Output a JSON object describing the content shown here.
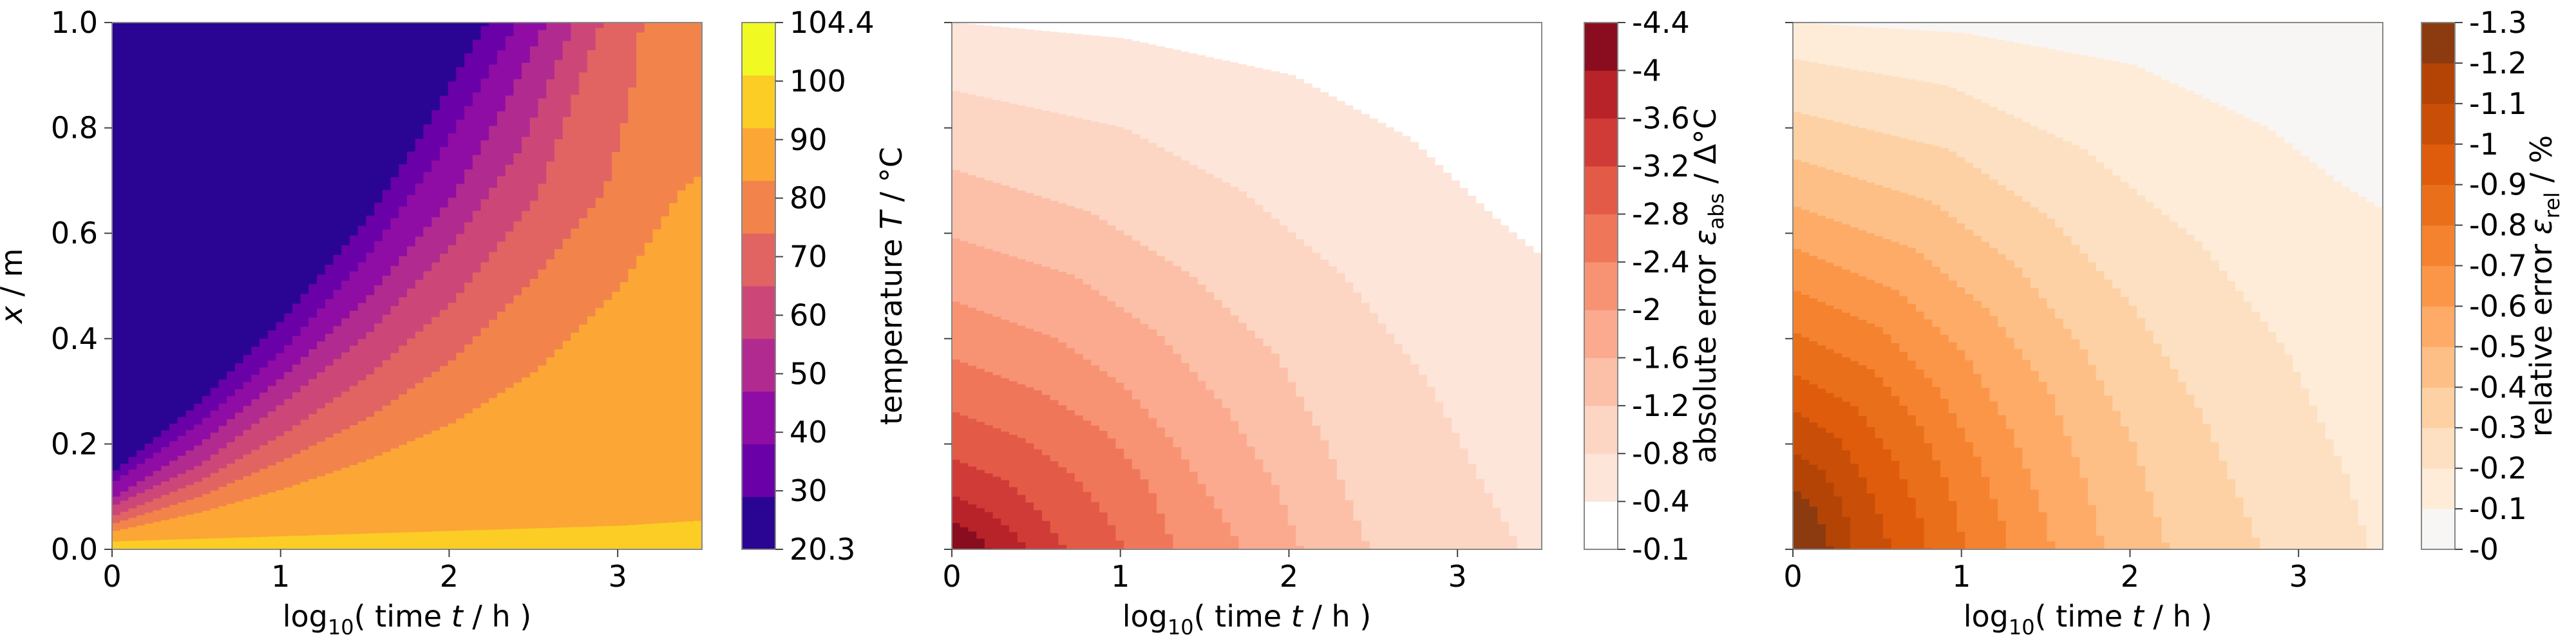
{
  "chart_data": [
    {
      "type": "heatmap",
      "panel": "temperature",
      "xlabel_parts": [
        "log",
        "10",
        "( time ",
        "t",
        " / h )"
      ],
      "ylabel_parts": [
        "x",
        " / m"
      ],
      "xlim": [
        0,
        3.5
      ],
      "ylim": [
        0,
        1
      ],
      "xticks": [
        "0",
        "1",
        "2",
        "3"
      ],
      "yticks": [
        "0.0",
        "0.2",
        "0.4",
        "0.6",
        "0.8",
        "1.0"
      ],
      "x_tick_values": [
        0,
        1,
        2,
        3
      ],
      "y_tick_values": [
        0,
        0.2,
        0.4,
        0.6,
        0.8,
        1.0
      ],
      "colormap": "plasma",
      "colorbar": {
        "label_parts": [
          "temperature ",
          "T",
          " / °C"
        ],
        "ticks": [
          "20.3",
          "30",
          "40",
          "50",
          "60",
          "70",
          "80",
          "90",
          "100",
          "104.4"
        ],
        "levels": [
          20.3,
          30,
          40,
          50,
          60,
          70,
          80,
          90,
          100,
          104.4
        ],
        "colors": [
          "#2a0593",
          "#6a00a8",
          "#8f0da4",
          "#b12a90",
          "#cc4778",
          "#e16462",
          "#f2844b",
          "#fca636",
          "#fccd25",
          "#f0f921"
        ]
      },
      "level_boundaries": [
        {
          "between": "20.3-30",
          "points": [
            [
              0,
              0.15
            ],
            [
              0.5,
              0.28
            ],
            [
              1.0,
              0.44
            ],
            [
              1.5,
              0.63
            ],
            [
              1.8,
              0.78
            ],
            [
              2.05,
              0.92
            ],
            [
              2.2,
              1.0
            ]
          ]
        },
        {
          "between": "30-40",
          "points": [
            [
              0,
              0.13
            ],
            [
              0.5,
              0.24
            ],
            [
              1.0,
              0.38
            ],
            [
              1.5,
              0.56
            ],
            [
              1.9,
              0.74
            ],
            [
              2.2,
              0.9
            ],
            [
              2.38,
              1.0
            ]
          ]
        },
        {
          "between": "40-50",
          "points": [
            [
              0,
              0.1
            ],
            [
              0.5,
              0.2
            ],
            [
              1.0,
              0.33
            ],
            [
              1.5,
              0.48
            ],
            [
              2.0,
              0.67
            ],
            [
              2.3,
              0.84
            ],
            [
              2.55,
              1.0
            ]
          ]
        },
        {
          "between": "50-60",
          "points": [
            [
              0,
              0.085
            ],
            [
              0.5,
              0.16
            ],
            [
              1.0,
              0.28
            ],
            [
              1.5,
              0.41
            ],
            [
              2.0,
              0.58
            ],
            [
              2.4,
              0.76
            ],
            [
              2.72,
              1.0
            ]
          ]
        },
        {
          "between": "60-70",
          "points": [
            [
              0,
              0.065
            ],
            [
              0.5,
              0.13
            ],
            [
              1.0,
              0.22
            ],
            [
              1.5,
              0.33
            ],
            [
              2.0,
              0.47
            ],
            [
              2.5,
              0.67
            ],
            [
              2.88,
              1.0
            ]
          ]
        },
        {
          "between": "70-80",
          "points": [
            [
              0,
              0.05
            ],
            [
              0.5,
              0.1
            ],
            [
              1.0,
              0.17
            ],
            [
              1.5,
              0.25
            ],
            [
              2.0,
              0.36
            ],
            [
              2.5,
              0.52
            ],
            [
              2.9,
              0.68
            ],
            [
              3.05,
              0.85
            ],
            [
              3.12,
              1.0
            ]
          ]
        },
        {
          "between": "80-90",
          "points": [
            [
              0,
              0.035
            ],
            [
              0.5,
              0.07
            ],
            [
              1.0,
              0.115
            ],
            [
              1.5,
              0.17
            ],
            [
              2.0,
              0.24
            ],
            [
              2.5,
              0.34
            ],
            [
              3.0,
              0.5
            ],
            [
              3.35,
              0.68
            ],
            [
              3.5,
              0.72
            ]
          ]
        },
        {
          "between": "90-100",
          "points": [
            [
              0,
              0.015
            ],
            [
              0.5,
              0.02
            ],
            [
              1.0,
              0.025
            ],
            [
              1.5,
              0.03
            ],
            [
              2.0,
              0.035
            ],
            [
              2.5,
              0.04
            ],
            [
              3.0,
              0.045
            ],
            [
              3.5,
              0.055
            ]
          ]
        }
      ]
    },
    {
      "type": "heatmap",
      "panel": "absolute-error",
      "xlabel_parts": [
        "log",
        "10",
        "( time ",
        "t",
        " / h )"
      ],
      "xlim": [
        0,
        3.5
      ],
      "ylim": [
        0,
        1
      ],
      "xticks": [
        "0",
        "1",
        "2",
        "3"
      ],
      "x_tick_values": [
        0,
        1,
        2,
        3
      ],
      "y_tick_values": [
        0,
        0.2,
        0.4,
        0.6,
        0.8,
        1.0
      ],
      "colormap": "Reds",
      "colorbar": {
        "label_parts": [
          "absolute error ",
          "ε",
          "abs",
          " / Δ°C"
        ],
        "ticks": [
          "-0.1",
          "-0.4",
          "-0.8",
          "-1.2",
          "-1.6",
          "-2",
          "-2.4",
          "-2.8",
          "-3.2",
          "-3.6",
          "-4",
          "-4.4"
        ],
        "levels": [
          -0.1,
          -0.4,
          -0.8,
          -1.2,
          -1.6,
          -2,
          -2.4,
          -2.8,
          -3.2,
          -3.6,
          -4,
          -4.4
        ],
        "colors": [
          "#ffffff",
          "#fee5d9",
          "#fdd5c3",
          "#fcc0a8",
          "#fbaa8f",
          "#f79373",
          "#f07659",
          "#e35a47",
          "#d13b37",
          "#b8232a",
          "#8a0d1f"
        ]
      },
      "level_boundaries": [
        {
          "between": "-0.1/-0.4",
          "points": [
            [
              0,
              1.0
            ],
            [
              1.0,
              0.97
            ],
            [
              2.0,
              0.9
            ],
            [
              2.7,
              0.78
            ],
            [
              3.2,
              0.63
            ],
            [
              3.5,
              0.55
            ]
          ]
        },
        {
          "between": "-0.4/-0.8",
          "points": [
            [
              0,
              0.87
            ],
            [
              1.0,
              0.8
            ],
            [
              1.7,
              0.68
            ],
            [
              2.3,
              0.52
            ],
            [
              2.8,
              0.32
            ],
            [
              3.1,
              0.14
            ],
            [
              3.35,
              0
            ]
          ]
        },
        {
          "between": "-0.8/-1.2",
          "points": [
            [
              0,
              0.72
            ],
            [
              0.8,
              0.64
            ],
            [
              1.4,
              0.52
            ],
            [
              1.9,
              0.37
            ],
            [
              2.2,
              0.2
            ],
            [
              2.45,
              0
            ]
          ]
        },
        {
          "between": "-1.2/-1.6",
          "points": [
            [
              0,
              0.59
            ],
            [
              0.7,
              0.52
            ],
            [
              1.2,
              0.41
            ],
            [
              1.6,
              0.27
            ],
            [
              1.9,
              0.12
            ],
            [
              2.05,
              0
            ]
          ]
        },
        {
          "between": "-1.6/-2",
          "points": [
            [
              0,
              0.47
            ],
            [
              0.6,
              0.4
            ],
            [
              1.0,
              0.31
            ],
            [
              1.3,
              0.2
            ],
            [
              1.55,
              0.08
            ],
            [
              1.7,
              0
            ]
          ]
        },
        {
          "between": "-2/-2.4",
          "points": [
            [
              0,
              0.36
            ],
            [
              0.5,
              0.3
            ],
            [
              0.9,
              0.22
            ],
            [
              1.15,
              0.12
            ],
            [
              1.3,
              0
            ]
          ]
        },
        {
          "between": "-2.4/-2.8",
          "points": [
            [
              0,
              0.26
            ],
            [
              0.4,
              0.21
            ],
            [
              0.7,
              0.14
            ],
            [
              0.9,
              0.06
            ],
            [
              1.0,
              0
            ]
          ]
        },
        {
          "between": "-2.8/-3.2",
          "points": [
            [
              0,
              0.17
            ],
            [
              0.3,
              0.13
            ],
            [
              0.5,
              0.07
            ],
            [
              0.65,
              0
            ]
          ]
        },
        {
          "between": "-3.2/-3.6",
          "points": [
            [
              0,
              0.1
            ],
            [
              0.2,
              0.07
            ],
            [
              0.35,
              0.03
            ],
            [
              0.42,
              0
            ]
          ]
        },
        {
          "between": "-3.6/-4",
          "points": [
            [
              0,
              0.05
            ],
            [
              0.12,
              0.03
            ],
            [
              0.2,
              0
            ]
          ]
        }
      ]
    },
    {
      "type": "heatmap",
      "panel": "relative-error",
      "xlabel_parts": [
        "log",
        "10",
        "( time ",
        "t",
        " / h )"
      ],
      "xlim": [
        0,
        3.5
      ],
      "ylim": [
        0,
        1
      ],
      "xticks": [
        "0",
        "1",
        "2",
        "3"
      ],
      "x_tick_values": [
        0,
        1,
        2,
        3
      ],
      "y_tick_values": [
        0,
        0.2,
        0.4,
        0.6,
        0.8,
        1.0
      ],
      "colormap": "Oranges",
      "colorbar": {
        "label_parts": [
          "relative error ",
          "ε",
          "rel",
          " / %"
        ],
        "ticks": [
          "-0",
          "-0.1",
          "-0.2",
          "-0.3",
          "-0.4",
          "-0.5",
          "-0.6",
          "-0.7",
          "-0.8",
          "-0.9",
          "-1",
          "-1.1",
          "-1.2",
          "-1.3"
        ],
        "levels": [
          0,
          -0.1,
          -0.2,
          -0.3,
          -0.4,
          -0.5,
          -0.6,
          -0.7,
          -0.8,
          -0.9,
          -1,
          -1.1,
          -1.2,
          -1.3
        ],
        "colors": [
          "#f7f6f4",
          "#feecd9",
          "#fde0c1",
          "#fdd1a4",
          "#fdbf86",
          "#fdab67",
          "#fb9649",
          "#f5822f",
          "#ea6f1a",
          "#de5c0c",
          "#c94e07",
          "#b34406",
          "#8c3a10"
        ]
      },
      "level_boundaries": [
        {
          "between": "0/-0.1",
          "points": [
            [
              0,
              1.0
            ],
            [
              1.0,
              0.98
            ],
            [
              2.0,
              0.92
            ],
            [
              2.8,
              0.8
            ],
            [
              3.2,
              0.7
            ],
            [
              3.5,
              0.64
            ]
          ]
        },
        {
          "between": "-0.1/-0.2",
          "points": [
            [
              0,
              0.93
            ],
            [
              0.9,
              0.88
            ],
            [
              1.7,
              0.76
            ],
            [
              2.4,
              0.58
            ],
            [
              2.9,
              0.38
            ],
            [
              3.25,
              0.15
            ],
            [
              3.4,
              0
            ]
          ]
        },
        {
          "between": "-0.2/-0.3",
          "points": [
            [
              0,
              0.83
            ],
            [
              0.9,
              0.76
            ],
            [
              1.5,
              0.63
            ],
            [
              2.0,
              0.46
            ],
            [
              2.4,
              0.26
            ],
            [
              2.65,
              0.08
            ],
            [
              2.75,
              0
            ]
          ]
        },
        {
          "between": "-0.3/-0.4",
          "points": [
            [
              0,
              0.74
            ],
            [
              0.8,
              0.66
            ],
            [
              1.3,
              0.54
            ],
            [
              1.7,
              0.38
            ],
            [
              2.0,
              0.2
            ],
            [
              2.2,
              0
            ]
          ]
        },
        {
          "between": "-0.4/-0.5",
          "points": [
            [
              0,
              0.65
            ],
            [
              0.7,
              0.57
            ],
            [
              1.15,
              0.45
            ],
            [
              1.5,
              0.3
            ],
            [
              1.72,
              0.12
            ],
            [
              1.82,
              0
            ]
          ]
        },
        {
          "between": "-0.5/-0.6",
          "points": [
            [
              0,
              0.57
            ],
            [
              0.6,
              0.49
            ],
            [
              1.0,
              0.37
            ],
            [
              1.28,
              0.22
            ],
            [
              1.45,
              0.08
            ],
            [
              1.52,
              0
            ]
          ]
        },
        {
          "between": "-0.6/-0.7",
          "points": [
            [
              0,
              0.49
            ],
            [
              0.5,
              0.42
            ],
            [
              0.85,
              0.3
            ],
            [
              1.08,
              0.17
            ],
            [
              1.22,
              0.05
            ],
            [
              1.25,
              0
            ]
          ]
        },
        {
          "between": "-0.7/-0.8",
          "points": [
            [
              0,
              0.41
            ],
            [
              0.45,
              0.34
            ],
            [
              0.72,
              0.24
            ],
            [
              0.9,
              0.12
            ],
            [
              1.0,
              0
            ]
          ]
        },
        {
          "between": "-0.8/-0.9",
          "points": [
            [
              0,
              0.33
            ],
            [
              0.35,
              0.27
            ],
            [
              0.58,
              0.17
            ],
            [
              0.72,
              0.07
            ],
            [
              0.78,
              0
            ]
          ]
        },
        {
          "between": "-0.9/-1",
          "points": [
            [
              0,
              0.26
            ],
            [
              0.25,
              0.21
            ],
            [
              0.42,
              0.12
            ],
            [
              0.52,
              0.04
            ],
            [
              0.55,
              0
            ]
          ]
        },
        {
          "between": "-1/-1.1",
          "points": [
            [
              0,
              0.18
            ],
            [
              0.15,
              0.15
            ],
            [
              0.28,
              0.08
            ],
            [
              0.33,
              0
            ]
          ]
        },
        {
          "between": "-1.1/-1.2",
          "points": [
            [
              0,
              0.11
            ],
            [
              0.1,
              0.08
            ],
            [
              0.17,
              0.03
            ],
            [
              0.2,
              0
            ]
          ]
        }
      ]
    }
  ]
}
